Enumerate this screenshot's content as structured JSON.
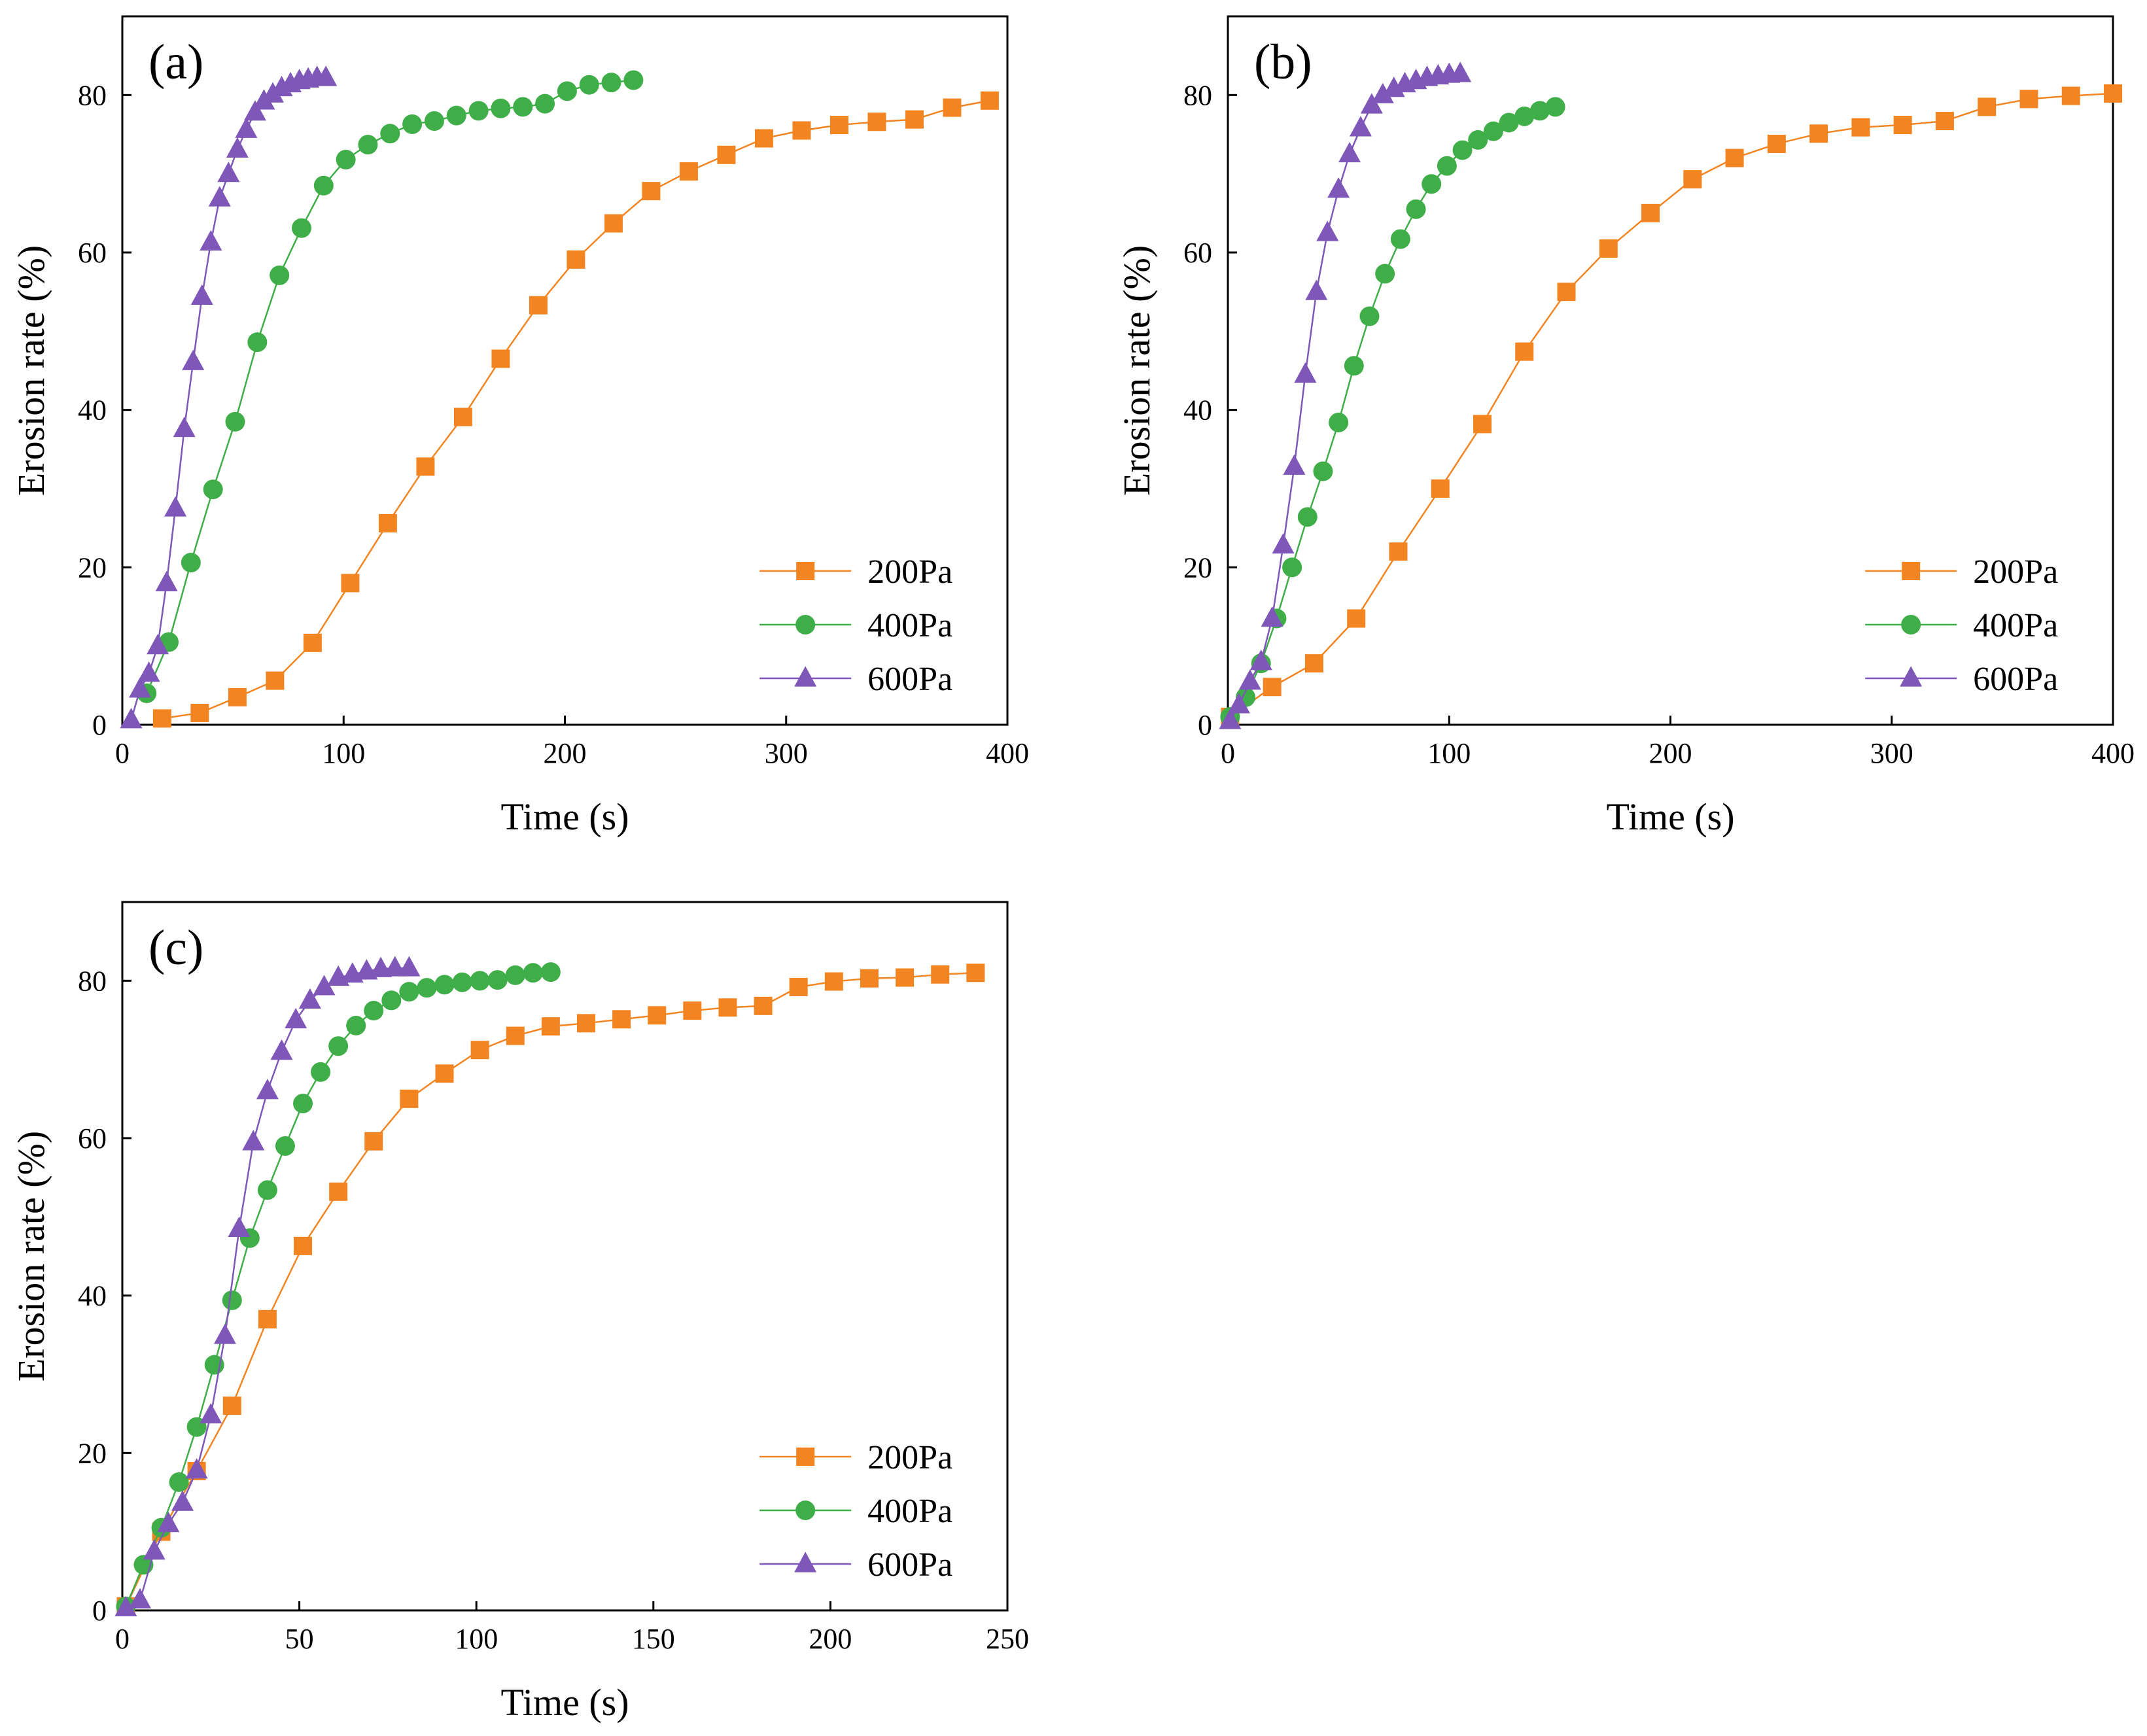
{
  "chart_data": [
    {
      "type": "line",
      "panel_label": "(a)",
      "xlabel": "Time (s)",
      "ylabel": "Erosion rate (%)",
      "xlim": [
        0,
        400
      ],
      "ylim": [
        0,
        90
      ],
      "xticks": [
        0,
        100,
        200,
        300,
        400
      ],
      "yticks": [
        0,
        20,
        40,
        60,
        80
      ],
      "legend_position": "bottom-right",
      "series": [
        {
          "name": "200Pa",
          "color": "#f28522",
          "marker": "square",
          "x": [
            18,
            35,
            52,
            69,
            86,
            103,
            120,
            137,
            154,
            171,
            188,
            205,
            222,
            239,
            256,
            273,
            290,
            307,
            324,
            341,
            358,
            375,
            392
          ],
          "y": [
            0.8,
            1.5,
            3.5,
            5.6,
            10.4,
            18.0,
            25.6,
            32.8,
            39.1,
            46.5,
            53.3,
            59.1,
            63.7,
            67.8,
            70.3,
            72.4,
            74.5,
            75.5,
            76.2,
            76.6,
            76.9,
            78.4,
            79.3
          ]
        },
        {
          "name": "400Pa",
          "color": "#3fae49",
          "marker": "circle",
          "x": [
            11,
            21,
            31,
            41,
            51,
            61,
            71,
            81,
            91,
            101,
            111,
            121,
            131,
            141,
            151,
            161,
            171,
            181,
            191,
            201,
            211,
            221,
            231
          ],
          "y": [
            4.0,
            10.5,
            20.6,
            29.9,
            38.5,
            48.6,
            57.1,
            63.1,
            68.5,
            71.8,
            73.7,
            75.1,
            76.3,
            76.7,
            77.4,
            78.0,
            78.3,
            78.5,
            78.9,
            80.5,
            81.3,
            81.6,
            81.9
          ]
        },
        {
          "name": "600Pa",
          "color": "#7e57b8",
          "marker": "triangle",
          "x": [
            4,
            8,
            12,
            16,
            20,
            24,
            28,
            32,
            36,
            40,
            44,
            48,
            52,
            56,
            60,
            64,
            68,
            72,
            76,
            80,
            84,
            88,
            92
          ],
          "y": [
            0.6,
            4.5,
            6.5,
            10.0,
            18.0,
            27.5,
            37.6,
            46.1,
            54.4,
            61.3,
            66.9,
            70.0,
            73.1,
            75.6,
            77.8,
            79.2,
            80.1,
            80.9,
            81.4,
            81.8,
            82.0,
            82.2,
            82.2
          ]
        }
      ]
    },
    {
      "type": "line",
      "panel_label": "(b)",
      "xlabel": "Time (s)",
      "ylabel": "Erosion rate (%)",
      "xlim": [
        0,
        400
      ],
      "ylim": [
        0,
        90
      ],
      "xticks": [
        0,
        100,
        200,
        300,
        400
      ],
      "yticks": [
        0,
        20,
        40,
        60,
        80
      ],
      "legend_position": "bottom-right",
      "series": [
        {
          "name": "200Pa",
          "color": "#f28522",
          "marker": "square",
          "x": [
            1,
            20,
            39,
            58,
            77,
            96,
            115,
            134,
            153,
            172,
            191,
            210,
            229,
            248,
            267,
            286,
            305,
            324,
            343,
            362,
            381,
            400
          ],
          "y": [
            1.0,
            4.8,
            7.8,
            13.5,
            22.0,
            30.0,
            38.2,
            47.4,
            55.0,
            60.5,
            65.0,
            69.3,
            72.0,
            73.8,
            75.1,
            75.9,
            76.2,
            76.7,
            78.5,
            79.5,
            79.9,
            80.2
          ]
        },
        {
          "name": "400Pa",
          "color": "#3fae49",
          "marker": "circle",
          "x": [
            1,
            8,
            15,
            22,
            29,
            36,
            43,
            50,
            57,
            64,
            71,
            78,
            85,
            92,
            99,
            106,
            113,
            120,
            127,
            134,
            141,
            148
          ],
          "y": [
            1.0,
            3.5,
            7.8,
            13.5,
            20.0,
            26.4,
            32.2,
            38.4,
            45.6,
            51.9,
            57.3,
            61.7,
            65.5,
            68.7,
            71.0,
            73.0,
            74.3,
            75.4,
            76.5,
            77.3,
            78.0,
            78.5
          ]
        },
        {
          "name": "600Pa",
          "color": "#7e57b8",
          "marker": "triangle",
          "x": [
            1,
            5,
            10,
            15,
            20,
            25,
            30,
            35,
            40,
            45,
            50,
            55,
            60,
            65,
            70,
            75,
            80,
            85,
            90,
            95,
            100,
            105
          ],
          "y": [
            0.5,
            2.5,
            5.5,
            8.0,
            13.5,
            22.8,
            32.8,
            44.5,
            55.0,
            62.5,
            68.0,
            72.5,
            75.8,
            78.7,
            80.0,
            80.8,
            81.4,
            81.8,
            82.2,
            82.4,
            82.6,
            82.7
          ]
        }
      ]
    },
    {
      "type": "line",
      "panel_label": "(c)",
      "xlabel": "Time (s)",
      "ylabel": "Erosion rate (%)",
      "xlim": [
        0,
        250
      ],
      "ylim": [
        0,
        90
      ],
      "xticks": [
        0,
        50,
        100,
        150,
        200,
        250
      ],
      "yticks": [
        0,
        20,
        40,
        60,
        80
      ],
      "legend_position": "bottom-right",
      "series": [
        {
          "name": "200Pa",
          "color": "#f28522",
          "marker": "square",
          "x": [
            1,
            11,
            21,
            31,
            41,
            51,
            61,
            71,
            81,
            91,
            101,
            111,
            121,
            131,
            141,
            151,
            161,
            171,
            181,
            191,
            201,
            211,
            221,
            231,
            241
          ],
          "y": [
            0.5,
            10.0,
            17.7,
            26.0,
            37.0,
            46.3,
            53.2,
            59.6,
            65.0,
            68.2,
            71.2,
            73.0,
            74.2,
            74.6,
            75.1,
            75.6,
            76.2,
            76.6,
            76.8,
            79.2,
            79.9,
            80.3,
            80.4,
            80.8,
            81.0
          ]
        },
        {
          "name": "400Pa",
          "color": "#3fae49",
          "marker": "circle",
          "x": [
            1,
            6,
            11,
            16,
            21,
            26,
            31,
            36,
            41,
            46,
            51,
            56,
            61,
            66,
            71,
            76,
            81,
            86,
            91,
            96,
            101,
            106,
            111,
            116,
            121
          ],
          "y": [
            0.5,
            5.8,
            10.5,
            16.3,
            23.3,
            31.2,
            39.4,
            47.3,
            53.4,
            59.0,
            64.4,
            68.4,
            71.7,
            74.3,
            76.2,
            77.5,
            78.6,
            79.1,
            79.5,
            79.8,
            80.0,
            80.1,
            80.7,
            81.0,
            81.1
          ]
        },
        {
          "name": "600Pa",
          "color": "#7e57b8",
          "marker": "triangle",
          "x": [
            1,
            5,
            9,
            13,
            17,
            21,
            25,
            29,
            33,
            37,
            41,
            45,
            49,
            53,
            57,
            61,
            65,
            69,
            73,
            77,
            81
          ],
          "y": [
            0.3,
            1.3,
            7.5,
            11.0,
            13.7,
            17.8,
            24.8,
            34.9,
            48.5,
            59.5,
            66.0,
            71.0,
            75.0,
            77.5,
            79.2,
            80.4,
            80.8,
            81.2,
            81.5,
            81.6,
            81.6
          ]
        }
      ]
    }
  ]
}
